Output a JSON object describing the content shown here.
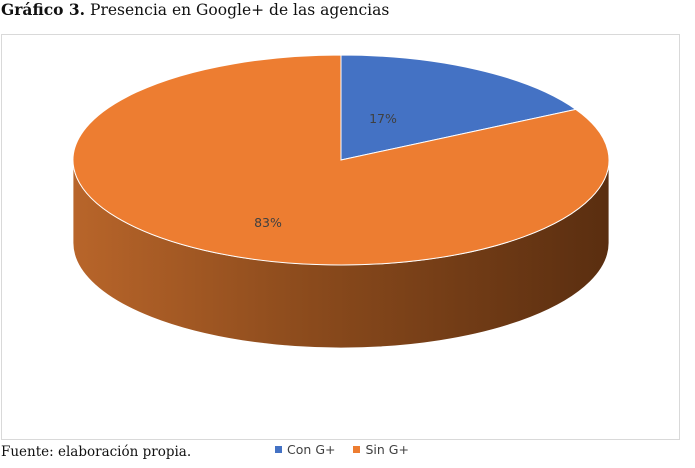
{
  "caption": {
    "label": "Gráfico 3.",
    "text": "Presencia en Google+ de las agencias"
  },
  "source": "Fuente: elaboración propia.",
  "chart_data": {
    "type": "pie",
    "style": "3d",
    "title": "",
    "categories": [
      "Con G+",
      "Sin G+"
    ],
    "values": [
      17,
      83
    ],
    "data_labels": [
      "17%",
      "83%"
    ],
    "colors": [
      "#4472C4",
      "#ED7D31"
    ],
    "legend_position": "bottom",
    "legend": [
      "Con G+",
      "Sin G+"
    ]
  }
}
